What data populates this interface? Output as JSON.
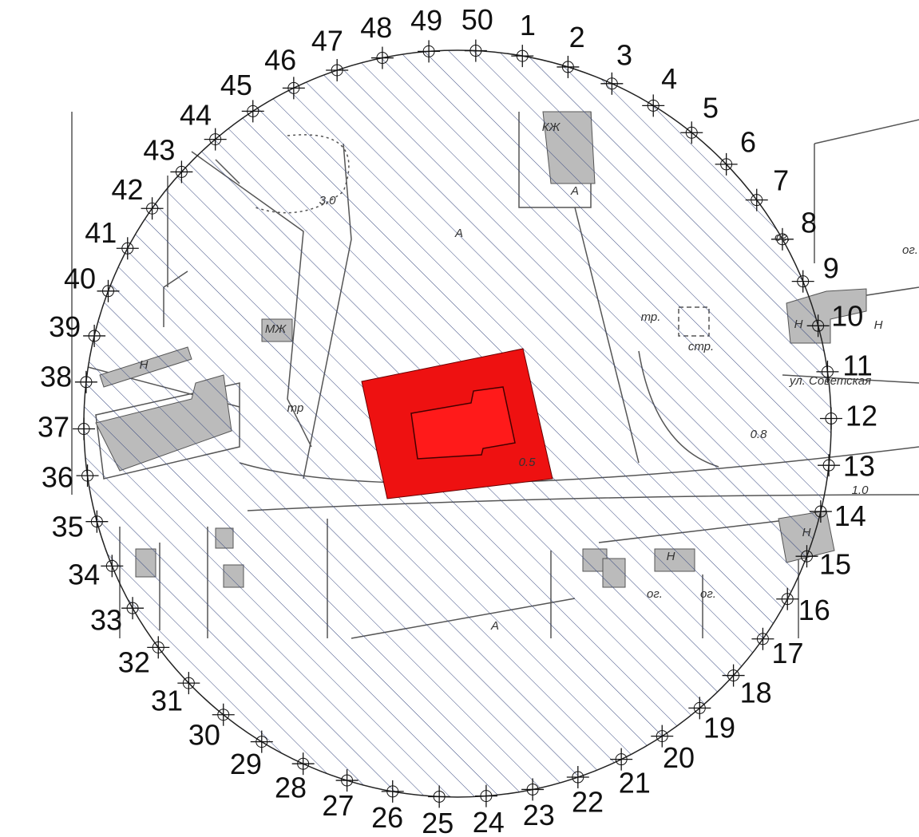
{
  "points": [
    "1",
    "2",
    "3",
    "4",
    "5",
    "6",
    "7",
    "8",
    "9",
    "10",
    "11",
    "12",
    "13",
    "14",
    "15",
    "16",
    "17",
    "18",
    "19",
    "20",
    "21",
    "22",
    "23",
    "24",
    "25",
    "26",
    "27",
    "28",
    "29",
    "30",
    "31",
    "32",
    "33",
    "34",
    "35",
    "36",
    "37",
    "38",
    "39",
    "40",
    "41",
    "42",
    "43",
    "44",
    "45",
    "46",
    "47",
    "48",
    "49",
    "50"
  ],
  "map_labels": [
    "3.0",
    "ул. Советская",
    "стр.",
    "тр.",
    "тр",
    "0.8",
    "1.0",
    "0.5",
    "ог.",
    "ог.",
    "ог.",
    "ог.",
    "А",
    "А",
    "А",
    "КЖ",
    "МЖ",
    "Н",
    "Н",
    "Н",
    "Н",
    "Н"
  ]
}
